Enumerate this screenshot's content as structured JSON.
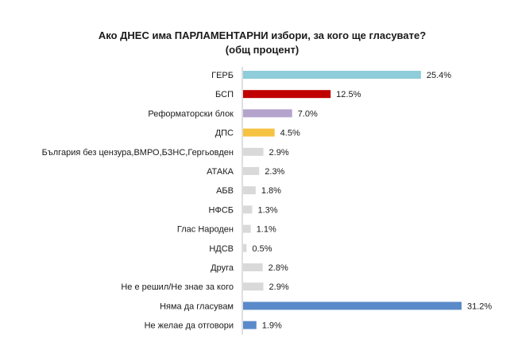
{
  "chart_data": {
    "type": "bar",
    "orientation": "horizontal",
    "title": "Ако ДНЕС има ПАРЛАМЕНТАРНИ избори, за кого ще гласувате? (общ процент)",
    "xlabel": "",
    "ylabel": "",
    "xlim": [
      0,
      31.2
    ],
    "grid": false,
    "legend": "none",
    "value_suffix": "%",
    "categories": [
      "ГЕРБ",
      "БСП",
      "Реформаторски блок",
      "ДПС",
      "България без цензура,ВМРО,БЗНС,Гергьовден",
      "АТАКА",
      "АБВ",
      "НФСБ",
      "Глас Народен",
      "НДСВ",
      "Друга",
      "Не е решил/Не знае за кого",
      "Няма да гласувам",
      "Не желае да отговори"
    ],
    "values": [
      25.4,
      12.5,
      7.0,
      4.5,
      2.9,
      2.3,
      1.8,
      1.3,
      1.1,
      0.5,
      2.8,
      2.9,
      31.2,
      1.9
    ],
    "value_labels": [
      "25.4%",
      "12.5%",
      "7.0%",
      "4.5%",
      "2.9%",
      "2.3%",
      "1.8%",
      "1.3%",
      "1.1%",
      "0.5%",
      "2.8%",
      "2.9%",
      "31.2%",
      "1.9%"
    ],
    "colors": [
      "#8ECDD9",
      "#C00000",
      "#B4A3CD",
      "#F5C242",
      "#D9D9D9",
      "#D9D9D9",
      "#D9D9D9",
      "#D9D9D9",
      "#D9D9D9",
      "#D9D9D9",
      "#D9D9D9",
      "#D9D9D9",
      "#5A8ACA",
      "#5A8ACA"
    ]
  }
}
